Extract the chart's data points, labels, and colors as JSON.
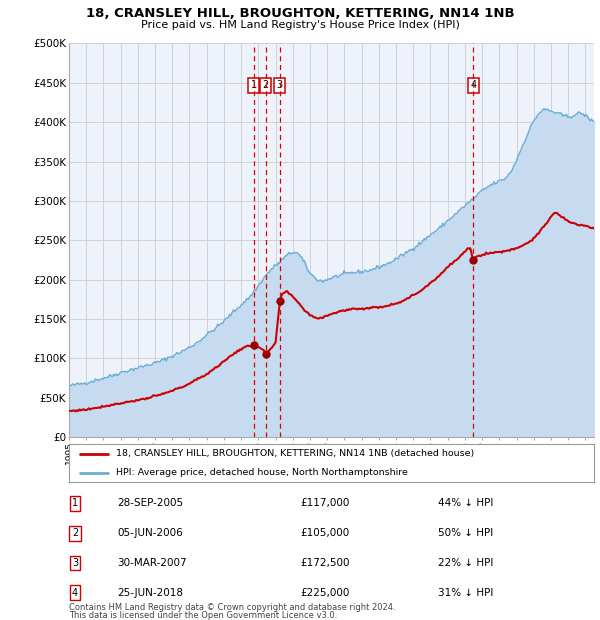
{
  "title": "18, CRANSLEY HILL, BROUGHTON, KETTERING, NN14 1NB",
  "subtitle": "Price paid vs. HM Land Registry's House Price Index (HPI)",
  "fig_bg_color": "#ffffff",
  "plot_bg_color": "#eef3fb",
  "grid_color": "#cccccc",
  "ylim": [
    0,
    500000
  ],
  "yticks": [
    0,
    50000,
    100000,
    150000,
    200000,
    250000,
    300000,
    350000,
    400000,
    450000,
    500000
  ],
  "ytick_labels": [
    "£0",
    "£50K",
    "£100K",
    "£150K",
    "£200K",
    "£250K",
    "£300K",
    "£350K",
    "£400K",
    "£450K",
    "£500K"
  ],
  "legend_label_red": "18, CRANSLEY HILL, BROUGHTON, KETTERING, NN14 1NB (detached house)",
  "legend_label_blue": "HPI: Average price, detached house, North Northamptonshire",
  "footer_line1": "Contains HM Land Registry data © Crown copyright and database right 2024.",
  "footer_line2": "This data is licensed under the Open Government Licence v3.0.",
  "transactions": [
    {
      "num": 1,
      "date_str": "28-SEP-2005",
      "date_x": 2005.74,
      "price": 117000,
      "pct": "44%",
      "dir": "↓"
    },
    {
      "num": 2,
      "date_str": "05-JUN-2006",
      "date_x": 2006.42,
      "price": 105000,
      "pct": "50%",
      "dir": "↓"
    },
    {
      "num": 3,
      "date_str": "30-MAR-2007",
      "date_x": 2007.25,
      "price": 172500,
      "pct": "22%",
      "dir": "↓"
    },
    {
      "num": 4,
      "date_str": "25-JUN-2018",
      "date_x": 2018.48,
      "price": 225000,
      "pct": "31%",
      "dir": "↓"
    }
  ],
  "hpi_color": "#6baed6",
  "hpi_fill_color": "#c6dbef",
  "price_color": "#cc0000",
  "vline_color": "#dd0000",
  "marker_color": "#990000",
  "xlim_left": 1995.0,
  "xlim_right": 2025.5
}
